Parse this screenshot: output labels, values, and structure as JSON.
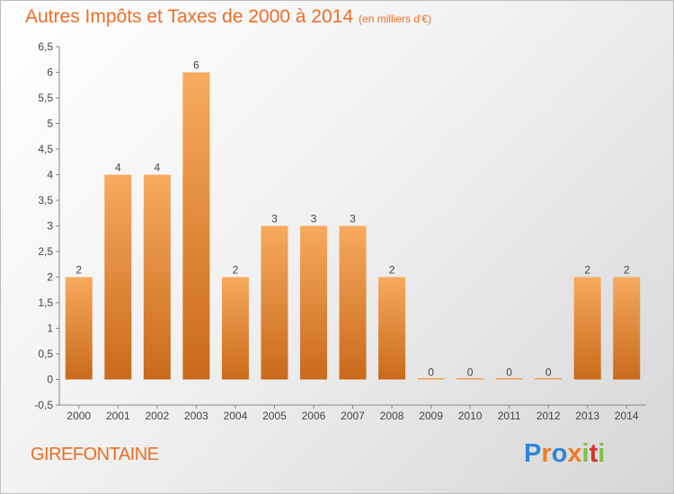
{
  "chart_data": {
    "type": "bar",
    "title": "Autres Impôts et Taxes de 2000 à 2014",
    "unit": "(en milliers d'€)",
    "categories": [
      "2000",
      "2001",
      "2002",
      "2003",
      "2004",
      "2005",
      "2006",
      "2007",
      "2008",
      "2009",
      "2010",
      "2011",
      "2012",
      "2013",
      "2014"
    ],
    "values": [
      2,
      4,
      4,
      6,
      2,
      3,
      3,
      3,
      2,
      0,
      0,
      0,
      0,
      2,
      2
    ],
    "ylim": [
      -0.5,
      6.5
    ],
    "yticks": [
      "-0,5",
      "0",
      "0,5",
      "1",
      "1,5",
      "2",
      "2,5",
      "3",
      "3,5",
      "4",
      "4,5",
      "5",
      "5,5",
      "6",
      "6,5"
    ],
    "grid": false,
    "bar_color": "#f0a050"
  },
  "commune": "GIREFONTAINE",
  "logo": {
    "letters": [
      "P",
      "r",
      "o",
      "x",
      "i",
      "t",
      "i"
    ],
    "colors": [
      "#2e86d6",
      "#ef7d22",
      "#2e86d6",
      "#ef7d22",
      "#7cc242",
      "#d8312f",
      "#7cc242"
    ]
  }
}
